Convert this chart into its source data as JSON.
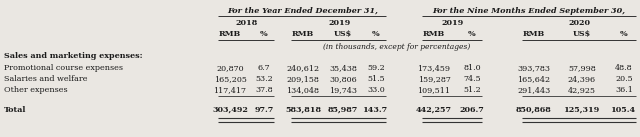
{
  "header1": "For the Year Ended December 31,",
  "header2": "For the Nine Months Ended September 30,",
  "year_labels": [
    "2018",
    "2019",
    "2019",
    "2020"
  ],
  "col_headers": [
    "RMB",
    "%",
    "RMB",
    "US$",
    "%",
    "RMB",
    "%",
    "RMB",
    "US$",
    "%"
  ],
  "note": "(in thousands, except for percentages)",
  "section_label": "Sales and marketing expenses:",
  "rows": [
    {
      "label": "Promotional course expenses",
      "values": [
        "20,870",
        "6.7",
        "240,612",
        "35,438",
        "59.2",
        "173,459",
        "81.0",
        "393,783",
        "57,998",
        "48.8"
      ]
    },
    {
      "label": "Salaries and welfare",
      "values": [
        "165,205",
        "53.2",
        "209,158",
        "30,806",
        "51.5",
        "159,287",
        "74.5",
        "165,642",
        "24,396",
        "20.5"
      ]
    },
    {
      "label": "Other expenses",
      "values": [
        "117,417",
        "37.8",
        "134,048",
        "19,743",
        "33.0",
        "109,511",
        "51.2",
        "291,443",
        "42,925",
        "36.1"
      ]
    }
  ],
  "total_label": "Total",
  "total_values": [
    "303,492",
    "97.7",
    "583,818",
    "85,987",
    "143.7",
    "442,257",
    "206.7",
    "850,868",
    "125,319",
    "105.4"
  ],
  "bg_color": "#eae7e2",
  "text_color": "#1a1a1a"
}
